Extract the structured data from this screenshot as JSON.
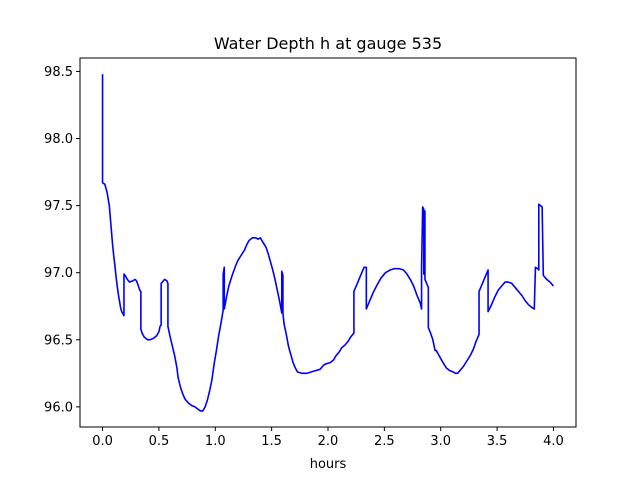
{
  "chart_data": {
    "type": "line",
    "title": "Water Depth h at gauge 535",
    "xlabel": "hours",
    "ylabel": "",
    "xlim": [
      -0.2,
      4.2
    ],
    "ylim": [
      95.85,
      98.6
    ],
    "xticks": [
      0.0,
      0.5,
      1.0,
      1.5,
      2.0,
      2.5,
      3.0,
      3.5,
      4.0
    ],
    "xtick_labels": [
      "0.0",
      "0.5",
      "1.0",
      "1.5",
      "2.0",
      "2.5",
      "3.0",
      "3.5",
      "4.0"
    ],
    "yticks": [
      96.0,
      96.5,
      97.0,
      97.5,
      98.0,
      98.5
    ],
    "ytick_labels": [
      "96.0",
      "96.5",
      "97.0",
      "97.5",
      "98.0",
      "98.5"
    ],
    "grid": false,
    "series": [
      {
        "color": "#0000ff",
        "points": [
          [
            0.0,
            98.48
          ],
          [
            0.0,
            98.0
          ],
          [
            0.0,
            97.67
          ],
          [
            0.02,
            97.66
          ],
          [
            0.04,
            97.6
          ],
          [
            0.06,
            97.5
          ],
          [
            0.07,
            97.4
          ],
          [
            0.08,
            97.3
          ],
          [
            0.09,
            97.2
          ],
          [
            0.1,
            97.12
          ],
          [
            0.11,
            97.05
          ],
          [
            0.12,
            96.97
          ],
          [
            0.13,
            96.9
          ],
          [
            0.14,
            96.84
          ],
          [
            0.15,
            96.79
          ],
          [
            0.16,
            96.74
          ],
          [
            0.17,
            96.71
          ],
          [
            0.19,
            96.68
          ],
          [
            0.19,
            96.99
          ],
          [
            0.2,
            96.98
          ],
          [
            0.22,
            96.95
          ],
          [
            0.24,
            96.93
          ],
          [
            0.27,
            96.94
          ],
          [
            0.29,
            96.95
          ],
          [
            0.3,
            96.94
          ],
          [
            0.31,
            96.92
          ],
          [
            0.33,
            96.87
          ],
          [
            0.34,
            96.86
          ],
          [
            0.34,
            96.58
          ],
          [
            0.35,
            96.55
          ],
          [
            0.37,
            96.52
          ],
          [
            0.4,
            96.5
          ],
          [
            0.42,
            96.5
          ],
          [
            0.45,
            96.51
          ],
          [
            0.48,
            96.53
          ],
          [
            0.5,
            96.56
          ],
          [
            0.51,
            96.6
          ],
          [
            0.52,
            96.61
          ],
          [
            0.52,
            96.92
          ],
          [
            0.53,
            96.93
          ],
          [
            0.55,
            96.95
          ],
          [
            0.57,
            96.94
          ],
          [
            0.58,
            96.92
          ],
          [
            0.58,
            96.6
          ],
          [
            0.6,
            96.52
          ],
          [
            0.62,
            96.45
          ],
          [
            0.64,
            96.38
          ],
          [
            0.66,
            96.29
          ],
          [
            0.67,
            96.22
          ],
          [
            0.69,
            96.15
          ],
          [
            0.71,
            96.1
          ],
          [
            0.73,
            96.06
          ],
          [
            0.76,
            96.03
          ],
          [
            0.79,
            96.01
          ],
          [
            0.82,
            96.0
          ],
          [
            0.85,
            95.98
          ],
          [
            0.87,
            95.97
          ],
          [
            0.89,
            95.97
          ],
          [
            0.91,
            96.0
          ],
          [
            0.93,
            96.05
          ],
          [
            0.95,
            96.12
          ],
          [
            0.97,
            96.2
          ],
          [
            0.99,
            96.32
          ],
          [
            1.01,
            96.42
          ],
          [
            1.03,
            96.53
          ],
          [
            1.05,
            96.62
          ],
          [
            1.07,
            96.72
          ],
          [
            1.07,
            96.99
          ],
          [
            1.08,
            97.04
          ],
          [
            1.08,
            96.73
          ],
          [
            1.1,
            96.82
          ],
          [
            1.12,
            96.9
          ],
          [
            1.15,
            96.98
          ],
          [
            1.18,
            97.05
          ],
          [
            1.2,
            97.09
          ],
          [
            1.23,
            97.13
          ],
          [
            1.26,
            97.17
          ],
          [
            1.28,
            97.21
          ],
          [
            1.3,
            97.24
          ],
          [
            1.33,
            97.26
          ],
          [
            1.36,
            97.26
          ],
          [
            1.38,
            97.25
          ],
          [
            1.4,
            97.26
          ],
          [
            1.42,
            97.23
          ],
          [
            1.45,
            97.19
          ],
          [
            1.47,
            97.14
          ],
          [
            1.49,
            97.08
          ],
          [
            1.51,
            97.02
          ],
          [
            1.53,
            96.95
          ],
          [
            1.55,
            96.87
          ],
          [
            1.57,
            96.79
          ],
          [
            1.59,
            96.7
          ],
          [
            1.59,
            97.01
          ],
          [
            1.6,
            96.98
          ],
          [
            1.6,
            96.7
          ],
          [
            1.61,
            96.62
          ],
          [
            1.63,
            96.54
          ],
          [
            1.65,
            96.45
          ],
          [
            1.67,
            96.39
          ],
          [
            1.69,
            96.33
          ],
          [
            1.71,
            96.29
          ],
          [
            1.73,
            96.26
          ],
          [
            1.77,
            96.25
          ],
          [
            1.81,
            96.25
          ],
          [
            1.85,
            96.26
          ],
          [
            1.89,
            96.27
          ],
          [
            1.93,
            96.28
          ],
          [
            1.96,
            96.31
          ],
          [
            1.98,
            96.32
          ],
          [
            2.02,
            96.33
          ],
          [
            2.05,
            96.35
          ],
          [
            2.07,
            96.38
          ],
          [
            2.1,
            96.41
          ],
          [
            2.12,
            96.44
          ],
          [
            2.15,
            96.46
          ],
          [
            2.18,
            96.49
          ],
          [
            2.2,
            96.52
          ],
          [
            2.23,
            96.55
          ],
          [
            2.23,
            96.86
          ],
          [
            2.26,
            96.92
          ],
          [
            2.29,
            96.98
          ],
          [
            2.32,
            97.04
          ],
          [
            2.34,
            97.04
          ],
          [
            2.34,
            96.73
          ],
          [
            2.37,
            96.79
          ],
          [
            2.4,
            96.85
          ],
          [
            2.43,
            96.9
          ],
          [
            2.47,
            96.96
          ],
          [
            2.51,
            97.0
          ],
          [
            2.55,
            97.02
          ],
          [
            2.59,
            97.03
          ],
          [
            2.63,
            97.03
          ],
          [
            2.67,
            97.02
          ],
          [
            2.7,
            96.99
          ],
          [
            2.73,
            96.95
          ],
          [
            2.76,
            96.9
          ],
          [
            2.79,
            96.83
          ],
          [
            2.82,
            96.77
          ],
          [
            2.83,
            96.73
          ],
          [
            2.83,
            97.03
          ],
          [
            2.84,
            97.49
          ],
          [
            2.85,
            97.47
          ],
          [
            2.85,
            96.99
          ],
          [
            2.86,
            97.46
          ],
          [
            2.86,
            96.95
          ],
          [
            2.87,
            96.93
          ],
          [
            2.89,
            96.89
          ],
          [
            2.89,
            96.59
          ],
          [
            2.91,
            96.55
          ],
          [
            2.93,
            96.5
          ],
          [
            2.94,
            96.46
          ],
          [
            2.95,
            96.42
          ],
          [
            2.96,
            96.42
          ],
          [
            2.98,
            96.39
          ],
          [
            3.0,
            96.36
          ],
          [
            3.02,
            96.33
          ],
          [
            3.05,
            96.29
          ],
          [
            3.08,
            96.27
          ],
          [
            3.11,
            96.26
          ],
          [
            3.13,
            96.25
          ],
          [
            3.15,
            96.25
          ],
          [
            3.17,
            96.27
          ],
          [
            3.2,
            96.3
          ],
          [
            3.23,
            96.34
          ],
          [
            3.26,
            96.38
          ],
          [
            3.29,
            96.43
          ],
          [
            3.31,
            96.48
          ],
          [
            3.34,
            96.54
          ],
          [
            3.34,
            96.86
          ],
          [
            3.37,
            96.92
          ],
          [
            3.4,
            96.98
          ],
          [
            3.42,
            97.02
          ],
          [
            3.42,
            96.71
          ],
          [
            3.45,
            96.76
          ],
          [
            3.48,
            96.82
          ],
          [
            3.51,
            96.87
          ],
          [
            3.54,
            96.9
          ],
          [
            3.57,
            96.93
          ],
          [
            3.6,
            96.93
          ],
          [
            3.63,
            96.92
          ],
          [
            3.66,
            96.89
          ],
          [
            3.69,
            96.86
          ],
          [
            3.72,
            96.83
          ],
          [
            3.75,
            96.79
          ],
          [
            3.78,
            96.76
          ],
          [
            3.81,
            96.74
          ],
          [
            3.83,
            96.73
          ],
          [
            3.84,
            97.04
          ],
          [
            3.86,
            97.03
          ],
          [
            3.87,
            97.02
          ],
          [
            3.87,
            97.51
          ],
          [
            3.9,
            97.49
          ],
          [
            3.9,
            97.47
          ],
          [
            3.91,
            96.98
          ],
          [
            3.94,
            96.95
          ],
          [
            3.97,
            96.93
          ],
          [
            4.0,
            96.9
          ]
        ]
      }
    ]
  }
}
